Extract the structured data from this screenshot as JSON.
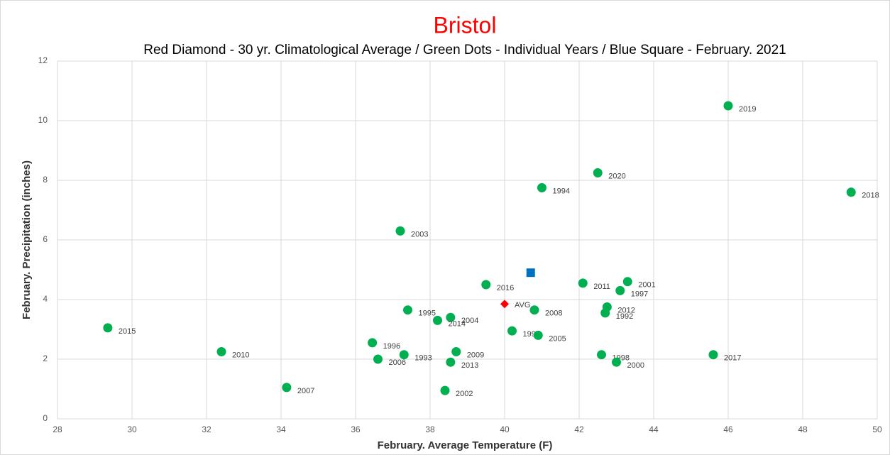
{
  "chart_data": {
    "type": "scatter",
    "title": "Bristol",
    "subtitle": "Red Diamond - 30 yr. Climatological Average / Green Dots - Individual Years / Blue Square - February. 2021",
    "x_label": "February. Average Temperature (F)",
    "y_label": "February. Precipitation (inches)",
    "xlim": [
      28,
      50
    ],
    "ylim": [
      0,
      12
    ],
    "xticks": [
      28,
      30,
      32,
      34,
      36,
      38,
      40,
      42,
      44,
      46,
      48,
      50
    ],
    "yticks": [
      0,
      2,
      4,
      6,
      8,
      10,
      12
    ],
    "grid": true,
    "series": [
      {
        "color": "#00b050",
        "marker": "circle",
        "labels": [
          "2019",
          "2020",
          "1994",
          "2018",
          "2003",
          "2016",
          "2011",
          "2001",
          "1997",
          "2008",
          "2012",
          "1992",
          "1995",
          "2004",
          "2014",
          "2015",
          "1999",
          "2005",
          "1996",
          "2010",
          "2009",
          "1993",
          "1998",
          "2017",
          "2006",
          "2013",
          "2000",
          "2007",
          "2002"
        ],
        "x": [
          46.0,
          42.5,
          41.0,
          49.3,
          37.2,
          39.5,
          42.1,
          43.3,
          43.1,
          40.8,
          42.75,
          42.7,
          37.4,
          38.55,
          38.2,
          29.35,
          40.2,
          40.9,
          36.45,
          32.4,
          38.7,
          37.3,
          42.6,
          45.6,
          36.6,
          38.55,
          43.0,
          34.15,
          38.4
        ],
        "values": [
          10.5,
          8.25,
          7.75,
          7.6,
          6.3,
          4.5,
          4.55,
          4.6,
          4.3,
          3.65,
          3.75,
          3.55,
          3.65,
          3.4,
          3.3,
          3.05,
          2.95,
          2.8,
          2.55,
          2.25,
          2.25,
          2.15,
          2.15,
          2.15,
          2.0,
          1.9,
          1.9,
          1.05,
          0.95
        ]
      },
      {
        "color": "#ff0000",
        "marker": "diamond",
        "labels": [
          "AVG"
        ],
        "x": [
          40.0
        ],
        "values": [
          3.85
        ]
      },
      {
        "color": "#0070c0",
        "marker": "square",
        "x": [
          40.7
        ],
        "values": [
          4.9
        ]
      }
    ]
  }
}
